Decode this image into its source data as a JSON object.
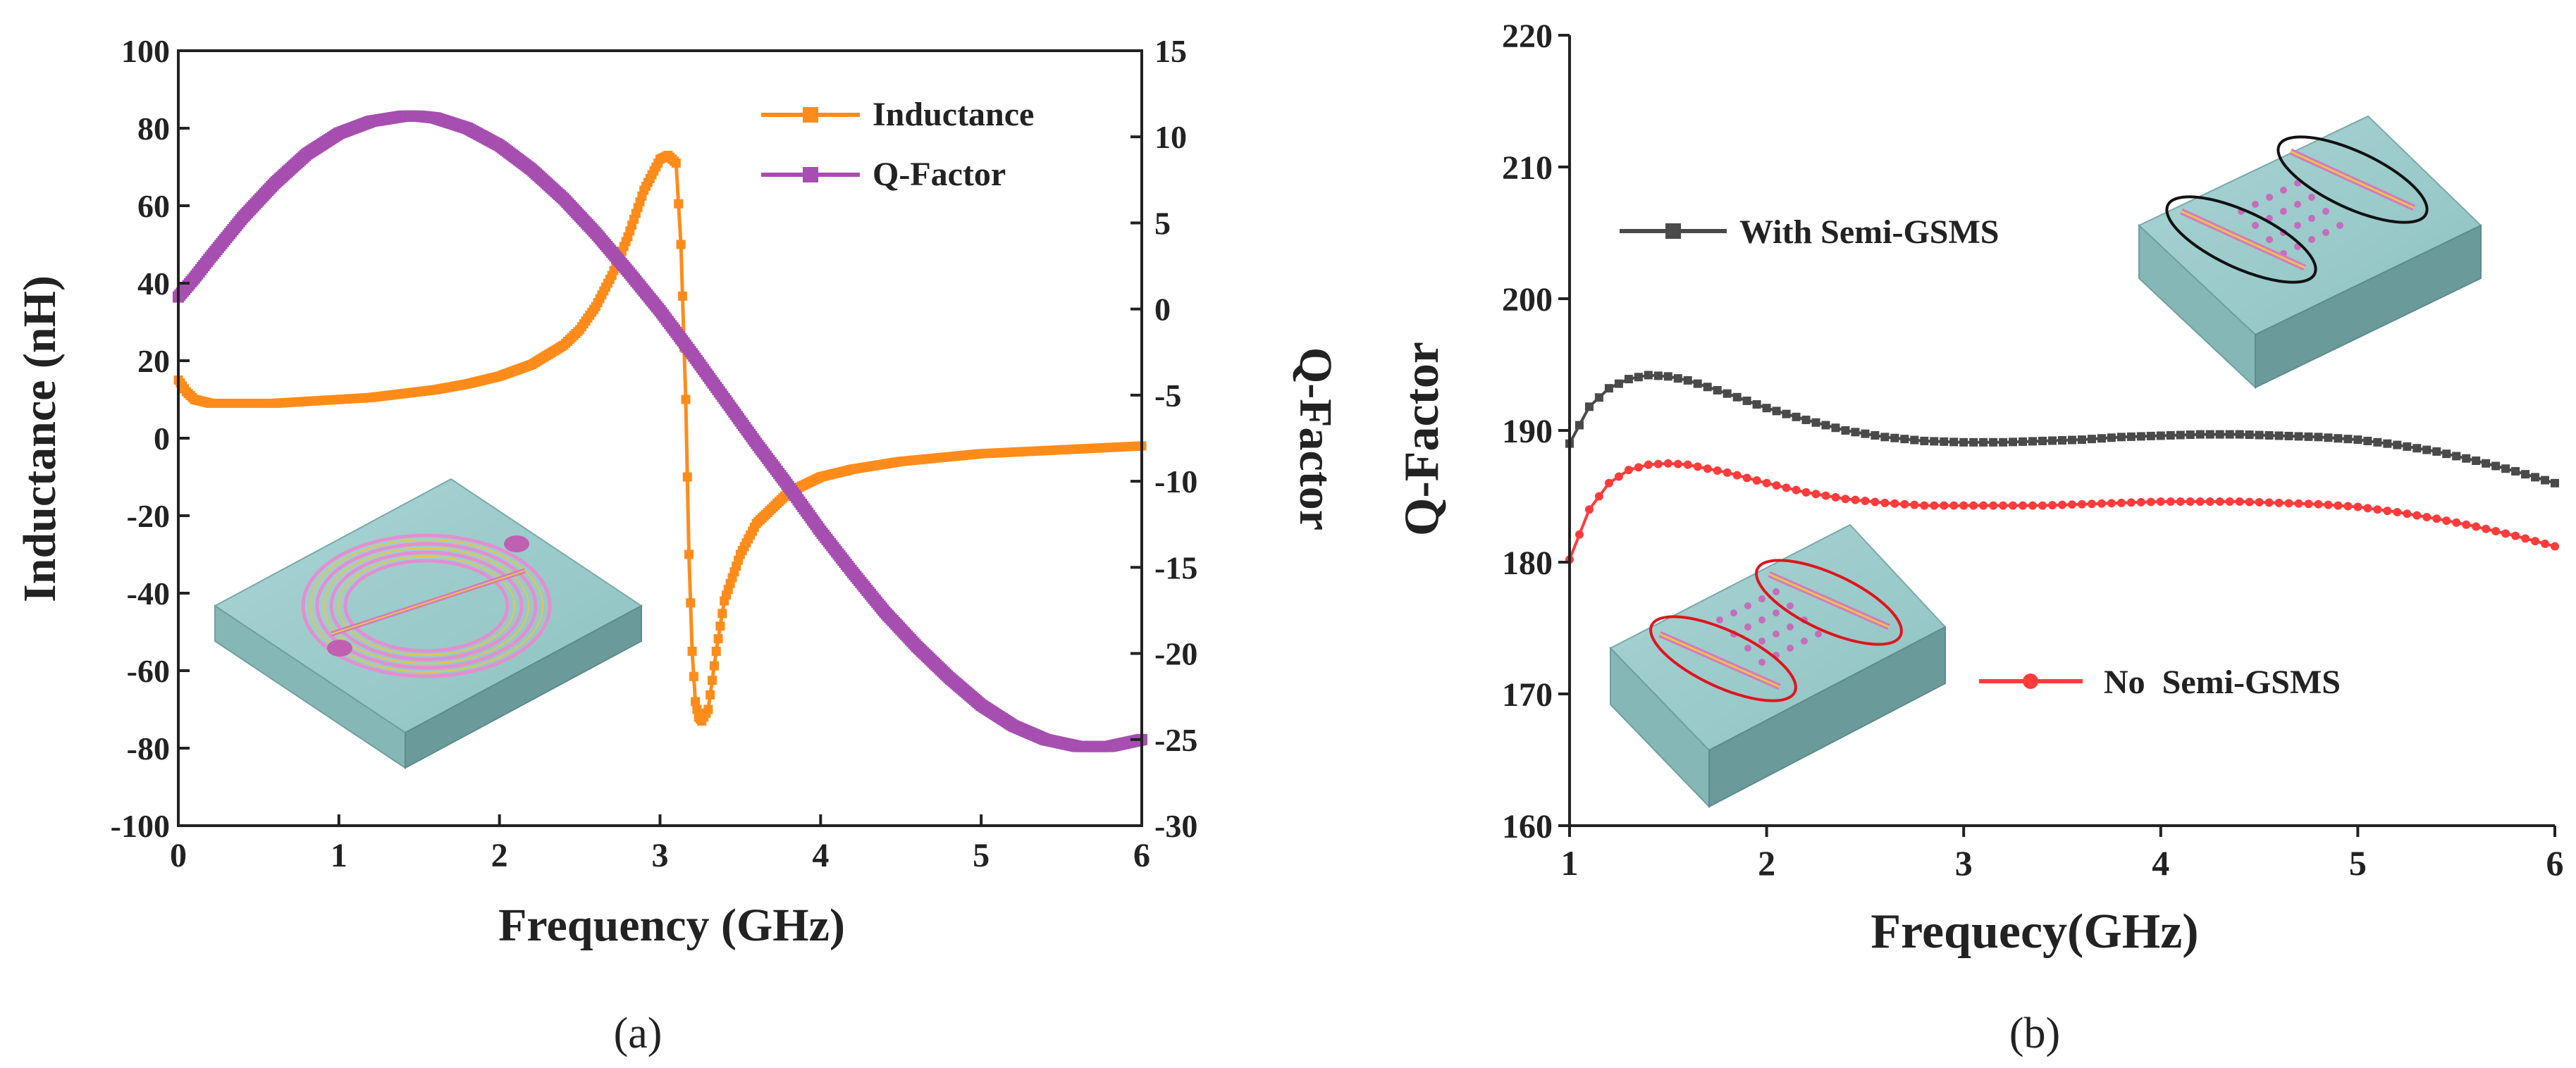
{
  "chart_data": [
    {
      "panel": "a",
      "panel_label": "(a)",
      "type": "line",
      "xlabel": "Frequency (GHz)",
      "ylabel_left": "Inductance (nH)",
      "ylabel_right": "Q-Factor",
      "xlim": [
        0,
        6
      ],
      "ylim_left": [
        -100,
        100
      ],
      "ylim_right": [
        -30,
        15
      ],
      "x_ticks": [
        "0",
        "1",
        "2",
        "3",
        "4",
        "5",
        "6"
      ],
      "y_left_ticks": [
        "-100",
        "-80",
        "-60",
        "-40",
        "-20",
        "0",
        "20",
        "40",
        "60",
        "80",
        "100"
      ],
      "y_right_ticks": [
        "-30",
        "-25",
        "-20",
        "-15",
        "-10",
        "-5",
        "0",
        "5",
        "10",
        "15"
      ],
      "legend_position": "top-right",
      "series": [
        {
          "name": "Inductance",
          "axis": "left",
          "color": "#ff8c1a",
          "marker": "square",
          "x": [
            0,
            0.05,
            0.1,
            0.2,
            0.4,
            0.6,
            0.8,
            1.0,
            1.2,
            1.4,
            1.6,
            1.8,
            2.0,
            2.2,
            2.4,
            2.5,
            2.6,
            2.7,
            2.8,
            2.9,
            3.0,
            3.05,
            3.1,
            3.13,
            3.16,
            3.18,
            3.2,
            3.22,
            3.24,
            3.26,
            3.3,
            3.35,
            3.4,
            3.5,
            3.6,
            3.8,
            4.0,
            4.2,
            4.5,
            5.0,
            5.5,
            6.0
          ],
          "y": [
            15,
            12,
            10,
            9,
            9,
            9,
            9.5,
            10,
            10.5,
            11.5,
            12.5,
            14,
            16,
            19,
            24,
            28,
            34,
            42,
            52,
            64,
            72,
            73,
            71,
            50,
            10,
            -30,
            -55,
            -68,
            -72,
            -73,
            -70,
            -55,
            -42,
            -30,
            -22,
            -14,
            -10,
            -8,
            -6,
            -4,
            -3,
            -2
          ]
        },
        {
          "name": "Q-Factor",
          "axis": "right",
          "color": "#a64fb0",
          "marker": "square",
          "x": [
            0,
            0.1,
            0.2,
            0.4,
            0.6,
            0.8,
            1.0,
            1.2,
            1.4,
            1.5,
            1.6,
            1.8,
            2.0,
            2.2,
            2.4,
            2.6,
            2.8,
            3.0,
            3.2,
            3.4,
            3.6,
            3.8,
            4.0,
            4.2,
            4.4,
            4.6,
            4.8,
            5.0,
            5.2,
            5.4,
            5.6,
            5.8,
            6.0
          ],
          "y": [
            0.7,
            1.8,
            3.0,
            5.3,
            7.3,
            9.0,
            10.2,
            10.9,
            11.2,
            11.2,
            11.1,
            10.5,
            9.5,
            8.1,
            6.4,
            4.4,
            2.2,
            -0.1,
            -2.6,
            -5.2,
            -7.8,
            -10.3,
            -12.9,
            -15.3,
            -17.6,
            -19.6,
            -21.4,
            -23.0,
            -24.2,
            -25.0,
            -25.4,
            -25.4,
            -25.0
          ]
        }
      ]
    },
    {
      "panel": "b",
      "panel_label": "(b)",
      "type": "line",
      "xlabel": "Frequecy(GHz)",
      "ylabel": "Q-Factor",
      "xlim": [
        1,
        6
      ],
      "ylim": [
        160,
        220
      ],
      "x_ticks": [
        "1",
        "2",
        "3",
        "4",
        "5",
        "6"
      ],
      "y_ticks": [
        "160",
        "170",
        "180",
        "190",
        "200",
        "210",
        "220"
      ],
      "series": [
        {
          "name": "With Semi-GSMS",
          "color": "#4a4a4a",
          "marker": "square",
          "x": [
            1.0,
            1.1,
            1.2,
            1.3,
            1.4,
            1.5,
            1.6,
            1.8,
            2.0,
            2.2,
            2.4,
            2.6,
            2.8,
            3.0,
            3.2,
            3.4,
            3.6,
            3.8,
            4.0,
            4.2,
            4.4,
            4.6,
            4.8,
            5.0,
            5.2,
            5.4,
            5.6,
            5.8,
            6.0
          ],
          "y": [
            189.0,
            191.8,
            193.2,
            193.9,
            194.2,
            194.1,
            193.8,
            192.8,
            191.7,
            190.8,
            190.0,
            189.5,
            189.2,
            189.1,
            189.1,
            189.2,
            189.3,
            189.5,
            189.6,
            189.7,
            189.7,
            189.6,
            189.5,
            189.3,
            188.9,
            188.4,
            187.7,
            186.9,
            186.0
          ]
        },
        {
          "name": "No  Semi-GSMS",
          "color": "#ff3b3b",
          "marker": "circle",
          "x": [
            1.0,
            1.1,
            1.2,
            1.3,
            1.4,
            1.5,
            1.6,
            1.8,
            2.0,
            2.2,
            2.4,
            2.6,
            2.8,
            3.0,
            3.2,
            3.4,
            3.6,
            3.8,
            4.0,
            4.2,
            4.4,
            4.6,
            4.8,
            5.0,
            5.2,
            5.4,
            5.6,
            5.8,
            6.0
          ],
          "y": [
            180.2,
            184.0,
            186.0,
            187.0,
            187.4,
            187.5,
            187.4,
            186.8,
            186.0,
            185.3,
            184.8,
            184.5,
            184.3,
            184.3,
            184.3,
            184.3,
            184.4,
            184.5,
            184.6,
            184.6,
            184.6,
            184.5,
            184.4,
            184.2,
            183.8,
            183.3,
            182.7,
            182.0,
            181.2
          ]
        }
      ]
    }
  ]
}
